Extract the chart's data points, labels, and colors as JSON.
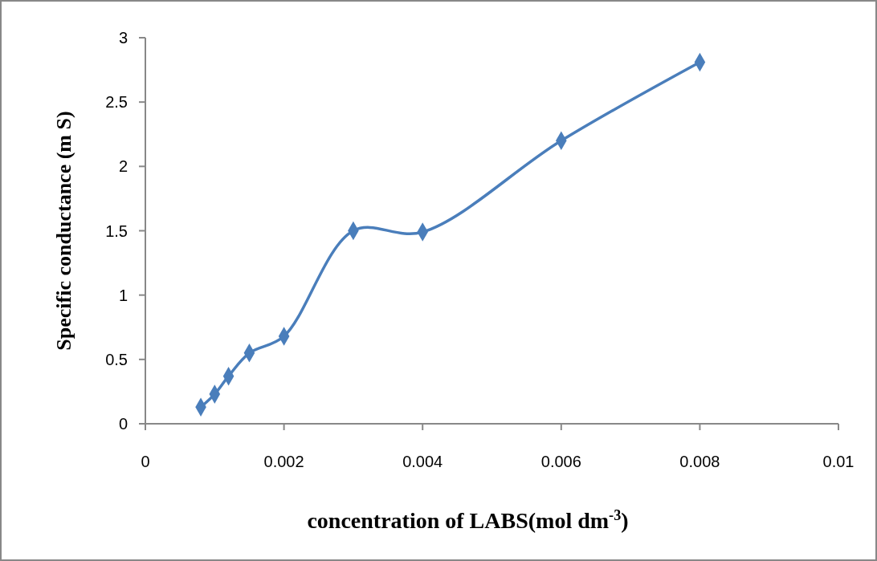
{
  "chart_data": {
    "type": "line",
    "xlabel": "concentration of LABS(mol dm$^{-3}$)",
    "ylabel": "Specific conductance (m S)",
    "x": [
      0.0008,
      0.001,
      0.0012,
      0.0015,
      0.002,
      0.003,
      0.004,
      0.006,
      0.008
    ],
    "series": [
      {
        "color": "#4a7ebb",
        "values": [
          0.13,
          0.23,
          0.37,
          0.55,
          0.68,
          1.5,
          1.49,
          2.2,
          2.81
        ]
      }
    ],
    "xlim": [
      0,
      0.01
    ],
    "xticks": [
      0,
      0.002,
      0.004,
      0.006,
      0.008,
      0.01
    ],
    "ylim": [
      0,
      3
    ],
    "yticks": [
      0,
      0.5,
      1,
      1.5,
      2,
      2.5,
      3
    ],
    "grid": false,
    "marker": "diamond",
    "line_style": "solid"
  }
}
